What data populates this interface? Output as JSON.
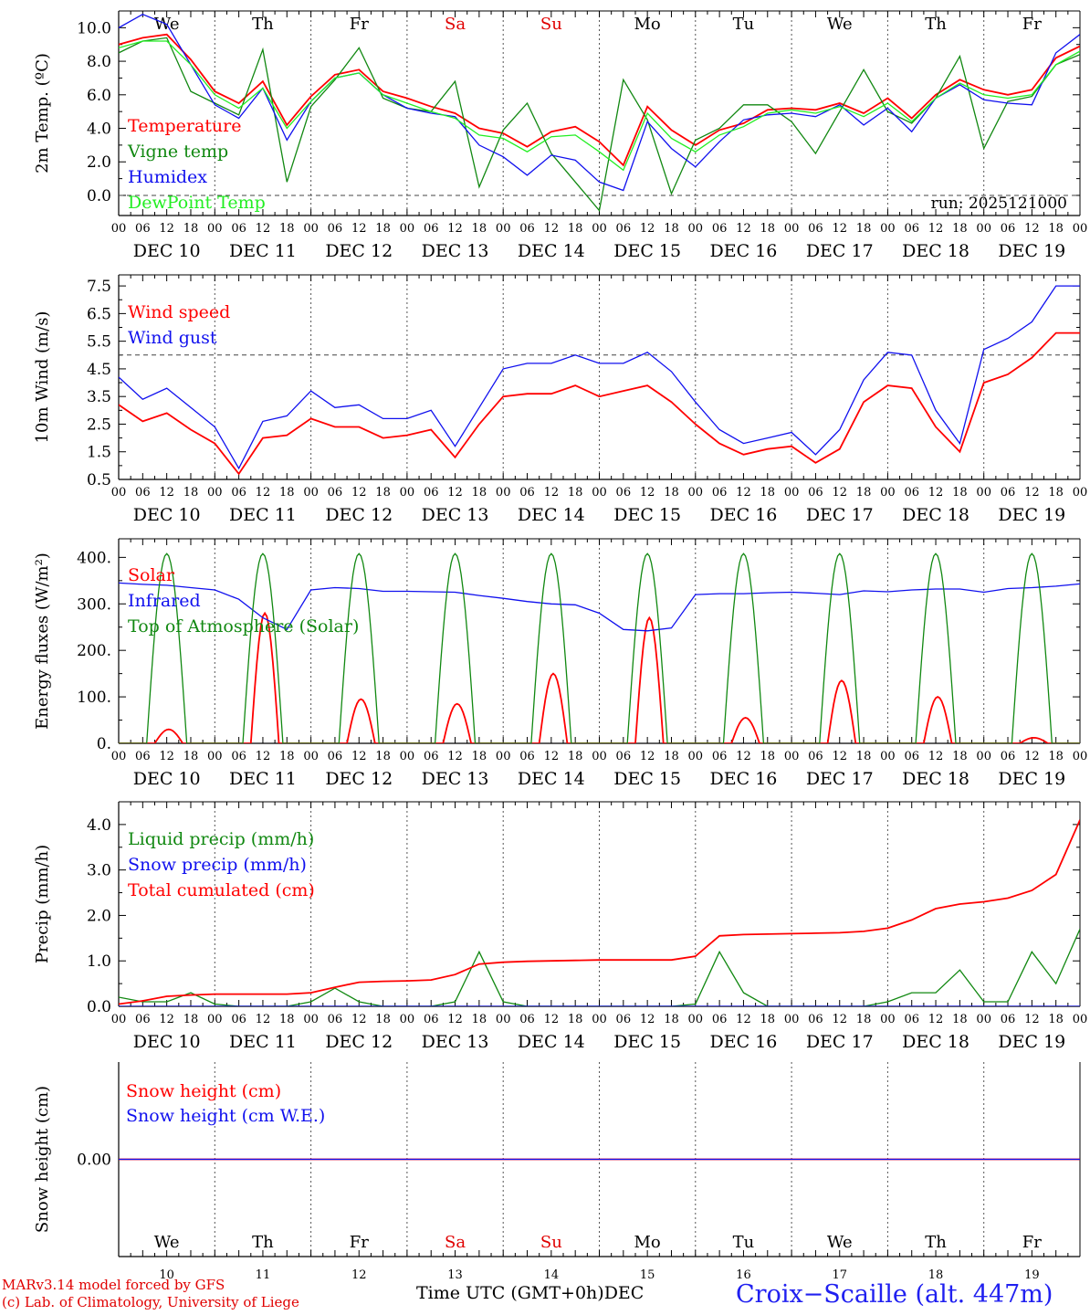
{
  "station": "Croix−Scaille (alt. 447m)",
  "credit": {
    "line1": "MARv3.14 model forced by GFS",
    "line2": "(c) Lab. of Climatology, University of Liege"
  },
  "time_axis": {
    "label": "Time UTC (GMT+0h)",
    "month": "DEC",
    "hour_ticks": [
      "00",
      "06",
      "12",
      "18"
    ],
    "day_labels": [
      "DEC 10",
      "DEC 11",
      "DEC 12",
      "DEC 13",
      "DEC 14",
      "DEC 15",
      "DEC 16",
      "DEC 17",
      "DEC 18",
      "DEC 19"
    ],
    "weekdays": [
      "We",
      "Th",
      "Fr",
      "Sa",
      "Su",
      "Mo",
      "Tu",
      "We",
      "Th",
      "Fr"
    ],
    "weekend_color": "#e00000",
    "day_numbers": [
      "10",
      "11",
      "12",
      "13",
      "14",
      "15",
      "16",
      "17",
      "18",
      "19"
    ]
  },
  "colors": {
    "red": "#ff0000",
    "green": "#118811",
    "blue": "#1010ee",
    "lightgreen": "#22ee22",
    "axis": "#000000",
    "grid": "#555555"
  },
  "chart_data": [
    {
      "type": "line",
      "id": "temp",
      "ylabel": "2m Temp. (ºC)",
      "ylim": [
        -1.2,
        11.0
      ],
      "ticks": [
        "0.0",
        "2.0",
        "4.0",
        "6.0",
        "8.0",
        "10.0"
      ],
      "tick_values": [
        0,
        2,
        4,
        6,
        8,
        10
      ],
      "ref_line": 0,
      "show_weekdays": true,
      "run_label": "run: 2025121000",
      "x_hours": [
        0,
        6,
        12,
        18,
        24,
        30,
        36,
        42,
        48,
        54,
        60,
        66,
        72,
        78,
        84,
        90,
        96,
        102,
        108,
        114,
        120,
        126,
        132,
        138,
        144,
        150,
        156,
        162,
        168,
        174,
        180,
        186,
        192,
        198,
        204,
        210,
        216,
        222,
        228,
        234,
        240
      ],
      "series": [
        {
          "name": "Temperature",
          "color": "red",
          "values": [
            9.0,
            9.4,
            9.6,
            8.1,
            6.2,
            5.5,
            6.8,
            4.2,
            5.9,
            7.2,
            7.5,
            6.2,
            5.8,
            5.3,
            4.9,
            4.0,
            3.7,
            2.9,
            3.8,
            4.1,
            3.2,
            1.8,
            5.3,
            3.9,
            3.0,
            3.9,
            4.3,
            5.1,
            5.2,
            5.1,
            5.5,
            4.9,
            5.8,
            4.6,
            6.0,
            6.9,
            6.3,
            6.0,
            6.3,
            8.2,
            8.9
          ]
        },
        {
          "name": "Vigne temp",
          "color": "green",
          "values": [
            8.5,
            9.2,
            9.4,
            6.2,
            5.5,
            4.8,
            8.7,
            0.8,
            5.3,
            6.9,
            8.8,
            5.8,
            5.2,
            5.0,
            6.8,
            0.5,
            3.9,
            5.5,
            2.5,
            0.8,
            -0.9,
            6.9,
            4.5,
            0.1,
            3.3,
            4.0,
            5.4,
            5.4,
            4.4,
            2.5,
            5.0,
            7.5,
            5.0,
            4.3,
            5.8,
            8.3,
            2.8,
            5.6,
            5.9,
            7.8,
            8.4
          ]
        },
        {
          "name": "Humidex",
          "color": "blue",
          "values": [
            10.0,
            10.8,
            10.2,
            7.8,
            5.4,
            4.6,
            6.4,
            3.3,
            5.6,
            7.0,
            7.3,
            6.0,
            5.2,
            4.9,
            4.7,
            3.0,
            2.3,
            1.2,
            2.4,
            2.1,
            0.8,
            0.3,
            4.4,
            2.8,
            1.7,
            3.2,
            4.5,
            4.8,
            4.9,
            4.7,
            5.4,
            4.2,
            5.2,
            3.8,
            5.8,
            6.6,
            5.7,
            5.5,
            5.4,
            8.5,
            9.6
          ]
        },
        {
          "name": "DewPoint Temp",
          "color": "lightgreen",
          "values": [
            8.8,
            9.2,
            9.2,
            7.8,
            6.0,
            5.2,
            6.4,
            4.0,
            5.6,
            7.0,
            7.3,
            6.0,
            5.5,
            5.0,
            4.6,
            3.6,
            3.4,
            2.6,
            3.5,
            3.6,
            2.6,
            1.5,
            4.9,
            3.4,
            2.6,
            3.6,
            4.1,
            4.9,
            5.1,
            4.9,
            5.3,
            4.7,
            5.5,
            4.4,
            5.8,
            6.7,
            6.0,
            5.8,
            6.0,
            7.8,
            8.6
          ]
        }
      ]
    },
    {
      "type": "line",
      "id": "wind",
      "ylabel": "10m Wind (m/s)",
      "ylim": [
        0.5,
        7.9
      ],
      "ticks": [
        "0.5",
        "1.5",
        "2.5",
        "3.5",
        "4.5",
        "5.5",
        "6.5",
        "7.5"
      ],
      "tick_values": [
        0.5,
        1.5,
        2.5,
        3.5,
        4.5,
        5.5,
        6.5,
        7.5
      ],
      "ref_line": 5.0,
      "show_weekdays": false,
      "x_hours": [
        0,
        6,
        12,
        18,
        24,
        30,
        36,
        42,
        48,
        54,
        60,
        66,
        72,
        78,
        84,
        90,
        96,
        102,
        108,
        114,
        120,
        126,
        132,
        138,
        144,
        150,
        156,
        162,
        168,
        174,
        180,
        186,
        192,
        198,
        204,
        210,
        216,
        222,
        228,
        234,
        240
      ],
      "series": [
        {
          "name": "Wind speed",
          "color": "red",
          "values": [
            3.2,
            2.6,
            2.9,
            2.3,
            1.8,
            0.7,
            2.0,
            2.1,
            2.7,
            2.4,
            2.4,
            2.0,
            2.1,
            2.3,
            1.3,
            2.5,
            3.5,
            3.6,
            3.6,
            3.9,
            3.5,
            3.7,
            3.9,
            3.3,
            2.5,
            1.8,
            1.4,
            1.6,
            1.7,
            1.1,
            1.6,
            3.3,
            3.9,
            3.8,
            2.4,
            1.5,
            4.0,
            4.3,
            4.9,
            5.8,
            5.8
          ]
        },
        {
          "name": "Wind gust",
          "color": "blue",
          "values": [
            4.2,
            3.4,
            3.8,
            3.1,
            2.4,
            0.9,
            2.6,
            2.8,
            3.7,
            3.1,
            3.2,
            2.7,
            2.7,
            3.0,
            1.7,
            3.1,
            4.5,
            4.7,
            4.7,
            5.0,
            4.7,
            4.7,
            5.1,
            4.4,
            3.3,
            2.3,
            1.8,
            2.0,
            2.2,
            1.4,
            2.3,
            4.1,
            5.1,
            5.0,
            3.0,
            1.8,
            5.2,
            5.6,
            6.2,
            7.5,
            7.5
          ]
        }
      ]
    },
    {
      "type": "line",
      "id": "energy",
      "ylabel": "Energy fluxes (W/m²)",
      "ylim": [
        0,
        440
      ],
      "ticks": [
        "0.",
        "100.",
        "200.",
        "300.",
        "400."
      ],
      "tick_values": [
        0,
        100,
        200,
        300,
        400
      ],
      "show_weekdays": false,
      "solar_peaks": [
        30,
        280,
        95,
        85,
        150,
        270,
        55,
        135,
        100,
        12
      ],
      "toa_peak": 408,
      "x_hours": [
        0,
        6,
        12,
        18,
        24,
        30,
        36,
        42,
        48,
        54,
        60,
        66,
        72,
        78,
        84,
        90,
        96,
        102,
        108,
        114,
        120,
        126,
        132,
        138,
        144,
        150,
        156,
        162,
        168,
        174,
        180,
        186,
        192,
        198,
        204,
        210,
        216,
        222,
        228,
        234,
        240
      ],
      "series": [
        {
          "name": "Solar",
          "color": "red",
          "values": "daily_peaks"
        },
        {
          "name": "Infrared",
          "color": "blue",
          "values": [
            345,
            342,
            340,
            335,
            330,
            310,
            270,
            245,
            330,
            335,
            333,
            327,
            327,
            326,
            325,
            318,
            312,
            305,
            300,
            298,
            280,
            245,
            242,
            248,
            320,
            322,
            322,
            324,
            325,
            323,
            320,
            328,
            326,
            330,
            332,
            332,
            325,
            333,
            335,
            338,
            343
          ]
        },
        {
          "name": "Top of Atmosphere (Solar)",
          "color": "green",
          "values": "daily_peaks"
        }
      ]
    },
    {
      "type": "line",
      "id": "precip",
      "ylabel": "Precip (mm/h)",
      "ylim": [
        0,
        4.5
      ],
      "ticks": [
        "0.0",
        "1.0",
        "2.0",
        "3.0",
        "4.0"
      ],
      "tick_values": [
        0,
        1,
        2,
        3,
        4
      ],
      "show_weekdays": false,
      "x_hours": [
        0,
        6,
        12,
        18,
        24,
        30,
        36,
        42,
        48,
        54,
        60,
        66,
        72,
        78,
        84,
        90,
        96,
        102,
        108,
        114,
        120,
        126,
        132,
        138,
        144,
        150,
        156,
        162,
        168,
        174,
        180,
        186,
        192,
        198,
        204,
        210,
        216,
        222,
        228,
        234,
        240
      ],
      "series": [
        {
          "name": "Liquid precip (mm/h)",
          "color": "green",
          "values": [
            0.2,
            0.1,
            0.1,
            0.3,
            0.05,
            0,
            0,
            0,
            0.1,
            0.4,
            0.1,
            0,
            0,
            0,
            0.1,
            1.2,
            0.1,
            0,
            0,
            0,
            0,
            0,
            0,
            0,
            0.05,
            1.2,
            0.3,
            0,
            0,
            0,
            0,
            0,
            0.1,
            0.3,
            0.3,
            0.8,
            0.1,
            0.1,
            1.2,
            0.5,
            1.7
          ]
        },
        {
          "name": "Snow precip (mm/h)",
          "color": "blue",
          "values": [
            0,
            0,
            0,
            0,
            0,
            0,
            0,
            0,
            0,
            0,
            0,
            0,
            0,
            0,
            0,
            0,
            0,
            0,
            0,
            0,
            0,
            0,
            0,
            0,
            0,
            0,
            0,
            0,
            0,
            0,
            0,
            0,
            0,
            0,
            0,
            0,
            0,
            0,
            0,
            0,
            0
          ]
        },
        {
          "name": "Total cumulated (cm)",
          "color": "red",
          "values": [
            0.05,
            0.12,
            0.22,
            0.25,
            0.27,
            0.27,
            0.27,
            0.27,
            0.3,
            0.42,
            0.53,
            0.55,
            0.56,
            0.58,
            0.7,
            0.93,
            0.97,
            0.99,
            1.0,
            1.01,
            1.02,
            1.02,
            1.02,
            1.02,
            1.1,
            1.55,
            1.58,
            1.59,
            1.6,
            1.61,
            1.62,
            1.65,
            1.72,
            1.9,
            2.15,
            2.25,
            2.3,
            2.38,
            2.55,
            2.9,
            4.1
          ]
        }
      ]
    },
    {
      "type": "line",
      "id": "snow",
      "ylabel": "Snow height (cm)",
      "ylim": [
        -1,
        1
      ],
      "ticks": [
        "0.00"
      ],
      "tick_values": [
        0
      ],
      "show_weekdays": false,
      "bottom_weekdays": true,
      "x_hours": [
        0,
        240
      ],
      "series": [
        {
          "name": "Snow height (cm)",
          "color": "red",
          "values": [
            0,
            0
          ]
        },
        {
          "name": "Snow height (cm W.E.)",
          "color": "blue",
          "values": [
            0,
            0
          ]
        }
      ]
    }
  ]
}
